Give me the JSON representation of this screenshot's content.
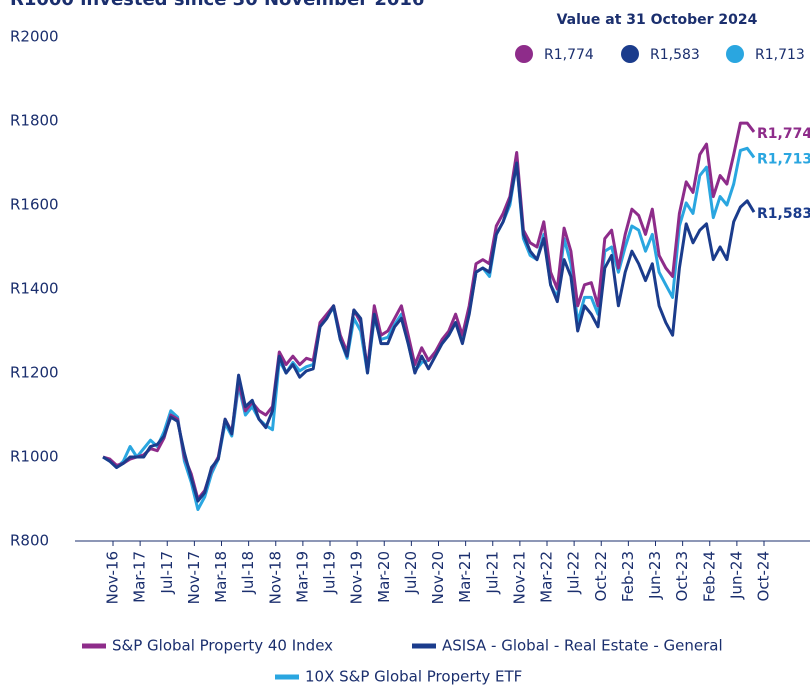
{
  "chart_data": {
    "type": "line",
    "title": "R1000 invested since 30 November 2016",
    "legend_title": "Value at 31 October 2024",
    "categories": [
      "Nov-16",
      null,
      null,
      null,
      "Mar-17",
      null,
      null,
      null,
      "Jul-17",
      null,
      null,
      null,
      "Nov-17",
      null,
      null,
      null,
      "Mar-18",
      null,
      null,
      null,
      "Jul-18",
      null,
      null,
      null,
      "Nov-18",
      null,
      null,
      null,
      "Mar-19",
      null,
      null,
      null,
      "Jul-19",
      null,
      null,
      null,
      "Nov-19",
      null,
      null,
      null,
      "Mar-20",
      null,
      null,
      null,
      "Jul-20",
      null,
      null,
      null,
      "Nov-20",
      null,
      null,
      null,
      "Mar-21",
      null,
      null,
      null,
      "Jul-21",
      null,
      null,
      null,
      "Nov-21",
      null,
      null,
      null,
      "Mar-22",
      null,
      null,
      null,
      "Jul-22",
      null,
      null,
      null,
      "Oct-22",
      null,
      null,
      null,
      "Feb-23",
      null,
      null,
      null,
      "Jun-23",
      null,
      null,
      null,
      "Oct-23",
      null,
      null,
      null,
      "Feb-24",
      null,
      null,
      null,
      "Jun-24",
      null,
      null,
      null,
      "Oct-24"
    ],
    "series": [
      {
        "name": "S&P Global Property 40 Index",
        "color": "#8e2c8a",
        "end_label": "R1,774",
        "values": [
          1000,
          995,
          980,
          985,
          995,
          1000,
          1005,
          1020,
          1015,
          1045,
          1100,
          1090,
          1000,
          960,
          900,
          920,
          970,
          1000,
          1090,
          1060,
          1180,
          1110,
          1130,
          1110,
          1100,
          1120,
          1250,
          1220,
          1240,
          1220,
          1235,
          1230,
          1320,
          1340,
          1360,
          1290,
          1250,
          1350,
          1320,
          1210,
          1360,
          1290,
          1300,
          1330,
          1360,
          1290,
          1220,
          1260,
          1230,
          1250,
          1280,
          1300,
          1340,
          1290,
          1360,
          1460,
          1470,
          1460,
          1550,
          1580,
          1620,
          1725,
          1540,
          1510,
          1500,
          1560,
          1440,
          1400,
          1545,
          1490,
          1360,
          1410,
          1415,
          1360,
          1520,
          1540,
          1450,
          1530,
          1590,
          1575,
          1530,
          1590,
          1480,
          1450,
          1430,
          1580,
          1655,
          1630,
          1720,
          1745,
          1620,
          1670,
          1650,
          1720,
          1795,
          1795,
          1774
        ]
      },
      {
        "name": "ASISA - Global - Real Estate - General",
        "color": "#1b3c8c",
        "end_label": "R1,583",
        "values": [
          1000,
          990,
          975,
          985,
          1000,
          1000,
          1000,
          1025,
          1030,
          1050,
          1095,
          1085,
          1010,
          950,
          895,
          915,
          975,
          995,
          1090,
          1055,
          1195,
          1120,
          1135,
          1090,
          1070,
          1110,
          1240,
          1200,
          1220,
          1190,
          1205,
          1210,
          1310,
          1330,
          1360,
          1280,
          1240,
          1350,
          1330,
          1200,
          1340,
          1270,
          1270,
          1310,
          1330,
          1270,
          1200,
          1240,
          1210,
          1240,
          1270,
          1290,
          1320,
          1270,
          1340,
          1440,
          1450,
          1440,
          1530,
          1560,
          1610,
          1700,
          1530,
          1490,
          1470,
          1520,
          1410,
          1370,
          1470,
          1430,
          1300,
          1360,
          1340,
          1310,
          1450,
          1480,
          1360,
          1440,
          1490,
          1460,
          1420,
          1460,
          1360,
          1320,
          1290,
          1450,
          1555,
          1510,
          1540,
          1555,
          1470,
          1500,
          1470,
          1560,
          1595,
          1610,
          1583
        ]
      },
      {
        "name": "10X S&P Global Property ETF",
        "color": "#2aa6e0",
        "end_label": "R1,713",
        "values": [
          1000,
          990,
          975,
          990,
          1025,
          1000,
          1020,
          1040,
          1025,
          1060,
          1110,
          1095,
          990,
          940,
          875,
          905,
          960,
          995,
          1080,
          1050,
          1170,
          1100,
          1120,
          1090,
          1075,
          1065,
          1230,
          1200,
          1225,
          1205,
          1215,
          1220,
          1310,
          1335,
          1355,
          1280,
          1235,
          1330,
          1300,
          1200,
          1330,
          1280,
          1285,
          1315,
          1340,
          1270,
          1205,
          1225,
          1230,
          1250,
          1270,
          1290,
          1320,
          1275,
          1345,
          1440,
          1450,
          1430,
          1530,
          1560,
          1600,
          1700,
          1520,
          1480,
          1470,
          1530,
          1410,
          1380,
          1520,
          1460,
          1320,
          1380,
          1380,
          1340,
          1490,
          1500,
          1440,
          1500,
          1550,
          1540,
          1490,
          1530,
          1440,
          1410,
          1380,
          1550,
          1605,
          1580,
          1670,
          1690,
          1570,
          1620,
          1600,
          1650,
          1730,
          1735,
          1713
        ]
      }
    ],
    "ylim": [
      800,
      2000
    ],
    "yticks": [
      {
        "value": 800,
        "label": "R800"
      },
      {
        "value": 1000,
        "label": "R1000"
      },
      {
        "value": 1200,
        "label": "R1200"
      },
      {
        "value": 1400,
        "label": "R1400"
      },
      {
        "value": 1600,
        "label": "R1600"
      },
      {
        "value": 1800,
        "label": "R1800"
      },
      {
        "value": 2000,
        "label": "R2000"
      }
    ],
    "grid": false
  }
}
